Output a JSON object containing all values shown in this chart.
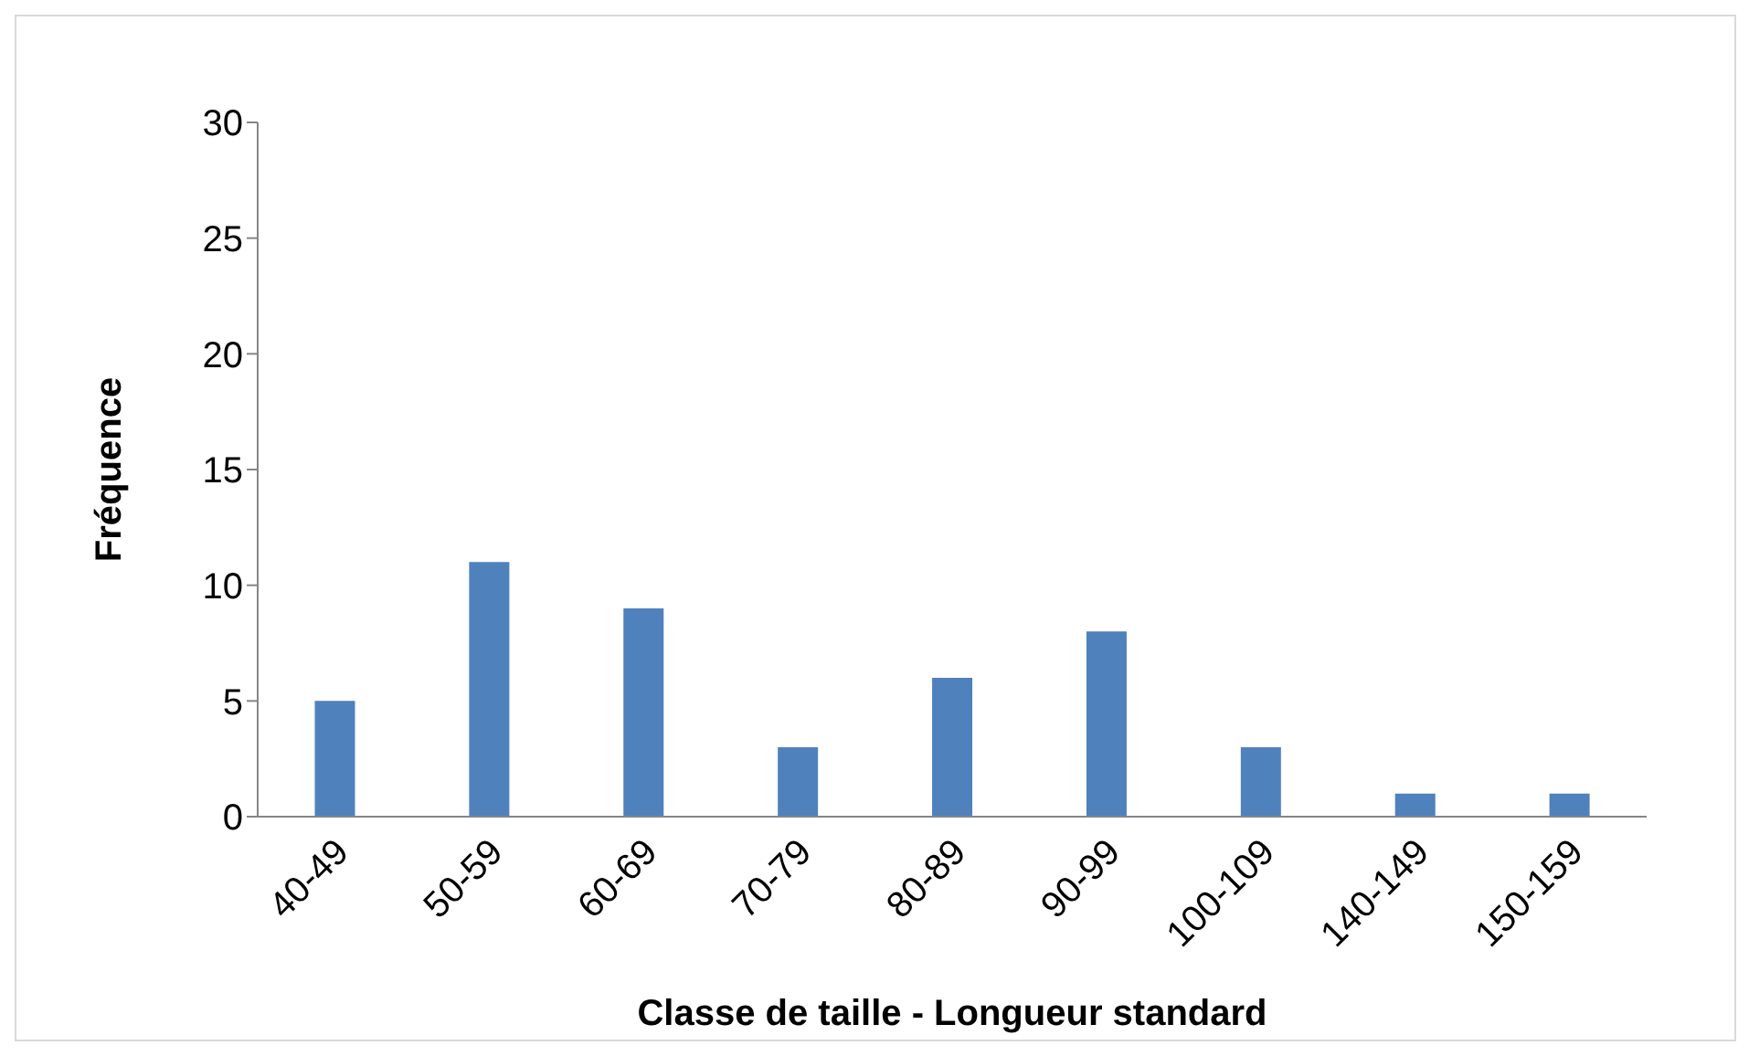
{
  "chart_data": {
    "type": "bar",
    "xlabel": "Classe de taille - Longueur standard",
    "ylabel": "Fréquence",
    "categories": [
      "40-49",
      "50-59",
      "60-69",
      "70-79",
      "80-89",
      "90-99",
      "100-109",
      "140-149",
      "150-159"
    ],
    "values": [
      5,
      11,
      9,
      3,
      6,
      8,
      3,
      1,
      1
    ],
    "color": "#4f81bd",
    "ylim": [
      0,
      30
    ],
    "yticks": [
      0,
      5,
      10,
      15,
      20,
      25,
      30
    ],
    "grid": false,
    "legend": false
  }
}
